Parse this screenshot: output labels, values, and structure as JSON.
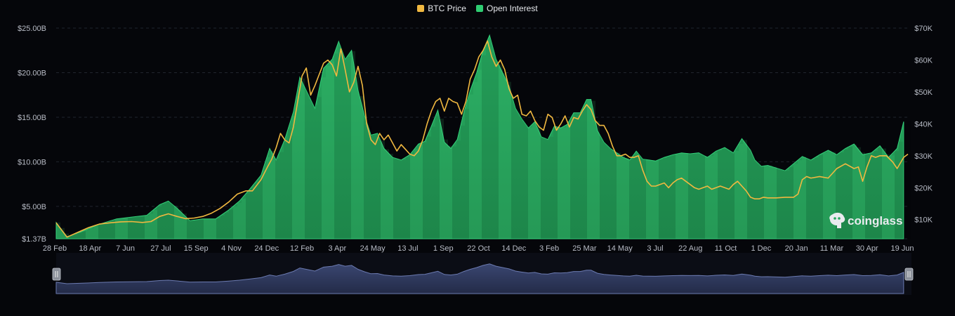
{
  "legend": {
    "items": [
      {
        "label": "BTC Price",
        "color": "#f0b840"
      },
      {
        "label": "Open Interest",
        "color": "#2ecc71"
      }
    ]
  },
  "watermark": {
    "text": "coinglass",
    "icon": "coinglass-logo-icon"
  },
  "navigator": {
    "left_handle_icon": "grip-handle-icon",
    "right_handle_icon": "grip-handle-icon"
  },
  "chart_data": {
    "type": "area",
    "title": "",
    "xlabel": "",
    "x_tick_labels": [
      "28 Feb",
      "18 Apr",
      "7 Jun",
      "27 Jul",
      "15 Sep",
      "4 Nov",
      "24 Dec",
      "12 Feb",
      "3 Apr",
      "24 May",
      "13 Jul",
      "1 Sep",
      "22 Oct",
      "14 Dec",
      "3 Feb",
      "25 Mar",
      "14 May",
      "3 Jul",
      "22 Aug",
      "11 Oct",
      "1 Dec",
      "20 Jan",
      "11 Mar",
      "30 Apr",
      "19 Jun"
    ],
    "y_left": {
      "label": "",
      "ticks": [
        "$1.37B",
        "$5.00B",
        "$10.00B",
        "$15.00B",
        "$20.00B",
        "$25.00B"
      ],
      "tick_values": [
        1.37,
        5,
        10,
        15,
        20,
        25
      ],
      "range": [
        1.37,
        25
      ]
    },
    "y_right": {
      "label": "",
      "ticks": [
        "$10K",
        "$20K",
        "$30K",
        "$40K",
        "$50K",
        "$60K",
        "$70K"
      ],
      "tick_values": [
        10,
        20,
        30,
        40,
        50,
        60,
        70
      ],
      "range": [
        4,
        70
      ]
    },
    "grid": true,
    "legend_position": "top-center",
    "series": [
      {
        "name": "Open Interest",
        "axis": "left",
        "unit": "B USD",
        "color": "#2ecc71",
        "points": [
          [
            0,
            3.2
          ],
          [
            5,
            1.6
          ],
          [
            12,
            2.2
          ],
          [
            20,
            3.0
          ],
          [
            28,
            3.6
          ],
          [
            35,
            3.8
          ],
          [
            42,
            4.0
          ],
          [
            48,
            5.2
          ],
          [
            52,
            5.6
          ],
          [
            56,
            4.8
          ],
          [
            62,
            3.4
          ],
          [
            68,
            3.6
          ],
          [
            74,
            3.6
          ],
          [
            80,
            4.6
          ],
          [
            85,
            5.6
          ],
          [
            90,
            7.0
          ],
          [
            95,
            8.5
          ],
          [
            99,
            11.5
          ],
          [
            102,
            10.2
          ],
          [
            106,
            12.5
          ],
          [
            110,
            15.6
          ],
          [
            113,
            19.5
          ],
          [
            116,
            18.0
          ],
          [
            120,
            16.0
          ],
          [
            124,
            20.5
          ],
          [
            128,
            21.5
          ],
          [
            131,
            23.5
          ],
          [
            134,
            21.5
          ],
          [
            137,
            22.5
          ],
          [
            140,
            18.0
          ],
          [
            143,
            15.2
          ],
          [
            146,
            13.0
          ],
          [
            149,
            13.2
          ],
          [
            152,
            11.5
          ],
          [
            156,
            10.5
          ],
          [
            160,
            10.2
          ],
          [
            164,
            10.8
          ],
          [
            168,
            12.0
          ],
          [
            171,
            12.3
          ],
          [
            174,
            14.0
          ],
          [
            177,
            15.8
          ],
          [
            180,
            12.2
          ],
          [
            183,
            11.5
          ],
          [
            186,
            12.5
          ],
          [
            189,
            15.5
          ],
          [
            192,
            18.0
          ],
          [
            195,
            20.0
          ],
          [
            198,
            22.5
          ],
          [
            201,
            24.2
          ],
          [
            204,
            21.5
          ],
          [
            207,
            20.0
          ],
          [
            210,
            18.5
          ],
          [
            213,
            16.0
          ],
          [
            216,
            14.8
          ],
          [
            219,
            13.8
          ],
          [
            222,
            14.5
          ],
          [
            225,
            12.8
          ],
          [
            228,
            12.5
          ],
          [
            231,
            14.0
          ],
          [
            234,
            13.8
          ],
          [
            237,
            14.2
          ],
          [
            240,
            15.5
          ],
          [
            243,
            15.5
          ],
          [
            246,
            17.0
          ],
          [
            248,
            17.0
          ],
          [
            251,
            13.5
          ],
          [
            254,
            12.2
          ],
          [
            257,
            11.5
          ],
          [
            260,
            11.0
          ],
          [
            263,
            10.5
          ],
          [
            266,
            10.2
          ],
          [
            269,
            11.2
          ],
          [
            272,
            10.3
          ],
          [
            275,
            10.2
          ],
          [
            278,
            10.1
          ],
          [
            282,
            10.5
          ],
          [
            286,
            10.8
          ],
          [
            290,
            11.0
          ],
          [
            294,
            10.9
          ],
          [
            298,
            11.0
          ],
          [
            302,
            10.5
          ],
          [
            306,
            11.2
          ],
          [
            310,
            11.6
          ],
          [
            314,
            11.0
          ],
          [
            318,
            12.6
          ],
          [
            322,
            11.3
          ],
          [
            324,
            10.2
          ],
          [
            327,
            9.5
          ],
          [
            330,
            9.6
          ],
          [
            334,
            9.3
          ],
          [
            338,
            9.0
          ],
          [
            342,
            9.8
          ],
          [
            346,
            10.6
          ],
          [
            350,
            10.2
          ],
          [
            354,
            10.8
          ],
          [
            358,
            11.3
          ],
          [
            362,
            10.8
          ],
          [
            366,
            11.5
          ],
          [
            370,
            12.0
          ],
          [
            374,
            10.8
          ],
          [
            378,
            11.0
          ],
          [
            382,
            11.8
          ],
          [
            386,
            10.5
          ],
          [
            390,
            11.5
          ],
          [
            393,
            14.5
          ]
        ]
      },
      {
        "name": "BTC Price",
        "axis": "right",
        "unit": "K USD",
        "color": "#f0b840",
        "points": [
          [
            0,
            9.0
          ],
          [
            5,
            4.5
          ],
          [
            10,
            6.0
          ],
          [
            15,
            7.5
          ],
          [
            20,
            8.6
          ],
          [
            25,
            9.0
          ],
          [
            30,
            9.3
          ],
          [
            35,
            9.4
          ],
          [
            40,
            9.1
          ],
          [
            44,
            9.4
          ],
          [
            48,
            11.0
          ],
          [
            52,
            11.8
          ],
          [
            56,
            11.0
          ],
          [
            60,
            10.3
          ],
          [
            64,
            10.5
          ],
          [
            68,
            11.0
          ],
          [
            72,
            12.0
          ],
          [
            76,
            13.5
          ],
          [
            80,
            15.5
          ],
          [
            84,
            18.0
          ],
          [
            88,
            19.0
          ],
          [
            91,
            19.0
          ],
          [
            95,
            22.5
          ],
          [
            98,
            26.5
          ],
          [
            100,
            29.0
          ],
          [
            102,
            32.5
          ],
          [
            104,
            37.0
          ],
          [
            106,
            35.0
          ],
          [
            108,
            34.0
          ],
          [
            110,
            39.0
          ],
          [
            112,
            47.0
          ],
          [
            114,
            55.0
          ],
          [
            116,
            57.5
          ],
          [
            118,
            49.0
          ],
          [
            120,
            52.0
          ],
          [
            122,
            55.5
          ],
          [
            124,
            59.0
          ],
          [
            126,
            60.0
          ],
          [
            128,
            58.5
          ],
          [
            130,
            55.0
          ],
          [
            132,
            63.5
          ],
          [
            134,
            57.0
          ],
          [
            136,
            50.0
          ],
          [
            138,
            53.0
          ],
          [
            140,
            58.0
          ],
          [
            142,
            52.0
          ],
          [
            144,
            40.0
          ],
          [
            146,
            35.0
          ],
          [
            148,
            33.5
          ],
          [
            150,
            37.0
          ],
          [
            152,
            35.0
          ],
          [
            154,
            36.5
          ],
          [
            156,
            34.0
          ],
          [
            158,
            31.5
          ],
          [
            160,
            33.5
          ],
          [
            162,
            32.0
          ],
          [
            164,
            30.5
          ],
          [
            166,
            30.0
          ],
          [
            168,
            31.5
          ],
          [
            170,
            35.0
          ],
          [
            172,
            40.0
          ],
          [
            174,
            44.0
          ],
          [
            176,
            47.0
          ],
          [
            178,
            48.0
          ],
          [
            180,
            44.0
          ],
          [
            182,
            48.0
          ],
          [
            184,
            47.0
          ],
          [
            186,
            46.5
          ],
          [
            188,
            43.0
          ],
          [
            190,
            47.0
          ],
          [
            192,
            54.0
          ],
          [
            194,
            57.0
          ],
          [
            196,
            61.0
          ],
          [
            198,
            63.0
          ],
          [
            200,
            66.0
          ],
          [
            202,
            61.0
          ],
          [
            204,
            58.0
          ],
          [
            206,
            60.0
          ],
          [
            208,
            57.0
          ],
          [
            210,
            51.0
          ],
          [
            212,
            48.0
          ],
          [
            214,
            49.0
          ],
          [
            216,
            43.0
          ],
          [
            218,
            42.5
          ],
          [
            220,
            44.0
          ],
          [
            222,
            41.0
          ],
          [
            224,
            39.0
          ],
          [
            226,
            38.0
          ],
          [
            228,
            43.0
          ],
          [
            230,
            42.0
          ],
          [
            232,
            38.0
          ],
          [
            234,
            40.0
          ],
          [
            236,
            42.5
          ],
          [
            238,
            39.0
          ],
          [
            240,
            42.0
          ],
          [
            242,
            41.5
          ],
          [
            244,
            44.0
          ],
          [
            246,
            46.0
          ],
          [
            248,
            44.5
          ],
          [
            250,
            41.0
          ],
          [
            252,
            39.5
          ],
          [
            254,
            39.5
          ],
          [
            256,
            37.0
          ],
          [
            258,
            33.0
          ],
          [
            260,
            30.0
          ],
          [
            262,
            30.0
          ],
          [
            264,
            30.5
          ],
          [
            266,
            29.5
          ],
          [
            268,
            29.5
          ],
          [
            270,
            30.0
          ],
          [
            272,
            25.5
          ],
          [
            274,
            22.0
          ],
          [
            276,
            20.5
          ],
          [
            278,
            20.5
          ],
          [
            280,
            21.0
          ],
          [
            282,
            21.5
          ],
          [
            284,
            20.0
          ],
          [
            286,
            21.5
          ],
          [
            288,
            22.5
          ],
          [
            290,
            23.0
          ],
          [
            292,
            22.0
          ],
          [
            294,
            21.0
          ],
          [
            296,
            20.0
          ],
          [
            298,
            19.5
          ],
          [
            300,
            20.0
          ],
          [
            302,
            20.5
          ],
          [
            304,
            19.5
          ],
          [
            306,
            20.0
          ],
          [
            308,
            20.5
          ],
          [
            310,
            20.0
          ],
          [
            312,
            19.5
          ],
          [
            314,
            21.0
          ],
          [
            316,
            22.0
          ],
          [
            318,
            20.5
          ],
          [
            320,
            19.0
          ],
          [
            322,
            17.0
          ],
          [
            324,
            16.5
          ],
          [
            326,
            16.5
          ],
          [
            328,
            17.0
          ],
          [
            330,
            16.8
          ],
          [
            334,
            16.8
          ],
          [
            338,
            17.0
          ],
          [
            342,
            17.0
          ],
          [
            344,
            18.0
          ],
          [
            346,
            22.5
          ],
          [
            348,
            23.5
          ],
          [
            350,
            23.0
          ],
          [
            354,
            23.5
          ],
          [
            358,
            23.0
          ],
          [
            362,
            26.0
          ],
          [
            366,
            27.5
          ],
          [
            370,
            26.0
          ],
          [
            372,
            26.5
          ],
          [
            374,
            22.0
          ],
          [
            376,
            26.5
          ],
          [
            378,
            30.0
          ],
          [
            380,
            29.5
          ],
          [
            382,
            30.0
          ],
          [
            385,
            30.0
          ],
          [
            388,
            28.0
          ],
          [
            390,
            26.0
          ],
          [
            393,
            29.5
          ],
          [
            395,
            30.5
          ]
        ]
      }
    ],
    "x_domain": [
      0,
      395
    ]
  }
}
